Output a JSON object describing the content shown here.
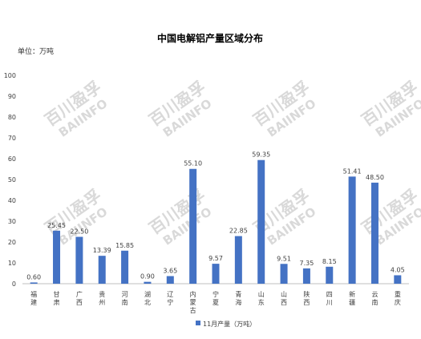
{
  "watermark": {
    "line1": "百川盈孚",
    "line2": "BAIINFO"
  },
  "chart_data": {
    "type": "bar",
    "title": "中国电解铝产量区域分布",
    "unit_label": "单位：万吨",
    "xlabel": "",
    "ylabel": "",
    "ylim": [
      0,
      100
    ],
    "yticks": [
      0,
      10,
      20,
      30,
      40,
      50,
      60,
      70,
      80,
      90,
      100
    ],
    "grid": false,
    "legend_position": "bottom",
    "bar_color": "#4472c4",
    "categories": [
      "福建",
      "甘肃",
      "广西",
      "贵州",
      "河南",
      "湖北",
      "辽宁",
      "内蒙古",
      "宁夏",
      "青海",
      "山东",
      "山西",
      "陕西",
      "四川",
      "新疆",
      "云南",
      "重庆"
    ],
    "series": [
      {
        "name": "11月产量（万吨）",
        "values": [
          0.6,
          25.45,
          22.5,
          13.39,
          15.85,
          0.9,
          3.65,
          55.1,
          9.57,
          22.85,
          59.35,
          9.51,
          7.35,
          8.15,
          51.41,
          48.5,
          4.05
        ],
        "labels": [
          "0.60",
          "25.45",
          "22.50",
          "13.39",
          "15.85",
          "0.90",
          "3.65",
          "55.10",
          "9.57",
          "22.85",
          "59.35",
          "9.51",
          "7.35",
          "8.15",
          "51.41",
          "48.50",
          "4.05"
        ]
      }
    ]
  }
}
